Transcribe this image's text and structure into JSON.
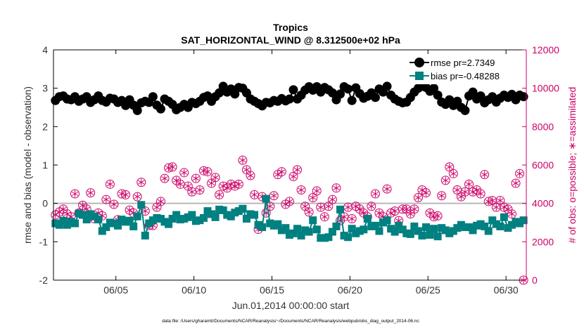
{
  "chart_data": {
    "type": "line",
    "title": "Tropics",
    "subtitle": "SAT_HORIZONTAL_WIND @ 8.312500e+02 hPa",
    "xlabel": "Jun.01,2014 00:00:00 start",
    "ylabel_left": "rmse and bias (model - observation)",
    "ylabel_right": "# of obs: o=possible; ∗=assimilated",
    "footnote": "data file: /Users/gharamti/Documents/NCAR/Reanalysis/~/Documents/NCAR/Reanalysis/webpub/obs_diag_output_2014-06.nc",
    "xlim": [
      1.0,
      31.3
    ],
    "ylim_left": [
      -2,
      4
    ],
    "ylim_right": [
      0,
      12000
    ],
    "x_ticks": [
      5,
      10,
      15,
      20,
      25,
      30
    ],
    "x_tick_labels": [
      "06/05",
      "06/10",
      "06/15",
      "06/20",
      "06/25",
      "06/30"
    ],
    "y_left_ticks": [
      -2,
      -1,
      0,
      1,
      2,
      3,
      4
    ],
    "y_left_tick_labels": [
      "-2",
      "-1",
      "0",
      "1",
      "2",
      "3",
      "4"
    ],
    "y_right_ticks": [
      0,
      2000,
      4000,
      6000,
      8000,
      10000,
      12000
    ],
    "y_right_tick_labels": [
      "0",
      "2000",
      "4000",
      "6000",
      "8000",
      "10000",
      "12000"
    ],
    "legend_position": "top-right",
    "series": [
      {
        "name": "rmse pr=2.7349",
        "axis": "left",
        "color": "#000000",
        "marker": "circle",
        "x": [
          1.125,
          1.375,
          1.625,
          1.875,
          2.125,
          2.375,
          2.625,
          2.875,
          3.125,
          3.375,
          3.625,
          3.875,
          4.125,
          4.375,
          4.625,
          4.875,
          5.125,
          5.375,
          5.625,
          5.875,
          6.125,
          6.375,
          6.625,
          6.875,
          7.125,
          7.375,
          7.625,
          7.875,
          8.125,
          8.375,
          8.625,
          8.875,
          9.125,
          9.375,
          9.625,
          9.875,
          10.125,
          10.375,
          10.625,
          10.875,
          11.125,
          11.375,
          11.625,
          11.875,
          12.125,
          12.375,
          12.625,
          12.875,
          13.125,
          13.375,
          13.625,
          13.875,
          14.125,
          14.375,
          14.625,
          14.875,
          15.125,
          15.375,
          15.625,
          15.875,
          16.125,
          16.375,
          16.625,
          16.875,
          17.125,
          17.375,
          17.625,
          17.875,
          18.125,
          18.375,
          18.625,
          18.875,
          19.125,
          19.375,
          19.625,
          19.875,
          20.125,
          20.375,
          20.625,
          20.875,
          21.125,
          21.375,
          21.625,
          21.875,
          22.125,
          22.375,
          22.625,
          22.875,
          23.125,
          23.375,
          23.625,
          23.875,
          24.125,
          24.375,
          24.625,
          24.875,
          25.125,
          25.375,
          25.625,
          25.875,
          26.125,
          26.375,
          26.625,
          26.875,
          27.125,
          27.375,
          27.625,
          27.875,
          28.125,
          28.375,
          28.625,
          28.875,
          29.125,
          29.375,
          29.625,
          29.875,
          30.125,
          30.375,
          30.625,
          30.875,
          31.125
        ],
        "values": [
          2.68,
          2.78,
          2.8,
          2.72,
          2.7,
          2.78,
          2.66,
          2.72,
          2.78,
          2.63,
          2.7,
          2.8,
          2.68,
          2.64,
          2.74,
          2.72,
          2.63,
          2.68,
          2.55,
          2.7,
          2.56,
          2.42,
          2.62,
          2.66,
          2.63,
          2.78,
          2.56,
          2.46,
          2.72,
          2.66,
          2.58,
          2.44,
          2.5,
          2.58,
          2.5,
          2.63,
          2.6,
          2.66,
          2.76,
          2.8,
          2.66,
          2.78,
          2.88,
          3.05,
          2.9,
          2.98,
          2.85,
          3.02,
          3.0,
          2.88,
          2.72,
          2.66,
          2.6,
          2.54,
          2.63,
          2.62,
          2.68,
          2.66,
          2.73,
          2.67,
          2.72,
          2.96,
          2.72,
          2.82,
          2.95,
          3.04,
          2.95,
          3.04,
          2.9,
          3.02,
          2.96,
          2.88,
          2.7,
          2.85,
          3.04,
          2.98,
          2.68,
          3.01,
          2.86,
          2.74,
          2.79,
          2.88,
          2.76,
          2.98,
          2.9,
          3.05,
          2.82,
          2.72,
          2.66,
          2.62,
          2.64,
          2.76,
          2.9,
          3.0,
          3.05,
          3.02,
          2.92,
          3.0,
          2.82,
          2.64,
          2.58,
          2.7,
          2.55,
          2.66,
          2.5,
          2.42,
          2.8,
          2.9,
          2.72,
          2.8,
          2.62,
          2.7,
          2.78,
          2.64,
          2.74,
          2.82,
          2.76,
          2.84,
          2.7,
          2.82,
          2.78
        ]
      },
      {
        "name": "bias pr=-0.48288",
        "axis": "left",
        "color": "#008080",
        "marker": "square",
        "x": [
          1.125,
          1.375,
          1.625,
          1.875,
          2.125,
          2.375,
          2.625,
          2.875,
          3.125,
          3.375,
          3.625,
          3.875,
          4.125,
          4.375,
          4.625,
          4.875,
          5.125,
          5.375,
          5.625,
          5.875,
          6.125,
          6.375,
          6.625,
          6.875,
          7.125,
          7.375,
          7.625,
          7.875,
          8.125,
          8.375,
          8.625,
          8.875,
          9.125,
          9.375,
          9.625,
          9.875,
          10.125,
          10.375,
          10.625,
          10.875,
          11.125,
          11.375,
          11.625,
          11.875,
          12.125,
          12.375,
          12.625,
          12.875,
          13.125,
          13.375,
          13.625,
          13.875,
          14.125,
          14.375,
          14.625,
          14.875,
          15.125,
          15.375,
          15.625,
          15.875,
          16.125,
          16.375,
          16.625,
          16.875,
          17.125,
          17.375,
          17.625,
          17.875,
          18.125,
          18.375,
          18.625,
          18.875,
          19.125,
          19.375,
          19.625,
          19.875,
          20.125,
          20.375,
          20.625,
          20.875,
          21.125,
          21.375,
          21.625,
          21.875,
          22.125,
          22.375,
          22.625,
          22.875,
          23.125,
          23.375,
          23.625,
          23.875,
          24.125,
          24.375,
          24.625,
          24.875,
          25.125,
          25.375,
          25.625,
          25.875,
          26.125,
          26.375,
          26.625,
          26.875,
          27.125,
          27.375,
          27.625,
          27.875,
          28.125,
          28.375,
          28.625,
          28.875,
          29.125,
          29.375,
          29.625,
          29.875,
          30.125,
          30.375,
          30.625,
          30.875,
          31.125
        ],
        "values": [
          -0.52,
          -0.56,
          -0.45,
          -0.56,
          -0.48,
          -0.52,
          -0.26,
          -0.3,
          -0.42,
          -0.28,
          -0.34,
          -0.42,
          -0.72,
          -0.62,
          -0.5,
          -0.52,
          -0.58,
          -0.42,
          -0.48,
          -0.45,
          -0.6,
          -0.34,
          -0.04,
          -0.84,
          -0.52,
          -0.44,
          -0.38,
          -0.4,
          -0.48,
          -0.54,
          -0.4,
          -0.3,
          -0.42,
          -0.4,
          -0.36,
          -0.3,
          -0.46,
          -0.44,
          -0.38,
          -0.2,
          -0.28,
          -0.36,
          -0.16,
          -0.18,
          -0.3,
          -0.34,
          -0.24,
          -0.2,
          -0.14,
          -0.4,
          -0.28,
          -0.3,
          -0.56,
          -0.62,
          0.12,
          -0.52,
          -0.58,
          -0.54,
          -0.7,
          -0.64,
          -0.82,
          -0.78,
          -0.66,
          -0.84,
          -0.7,
          -0.74,
          -0.44,
          -0.68,
          -0.9,
          -0.9,
          -0.88,
          -0.74,
          -0.6,
          -0.16,
          -0.84,
          -0.88,
          -0.66,
          -0.78,
          -0.72,
          -0.68,
          -0.4,
          -0.6,
          -0.58,
          -0.72,
          -0.5,
          -0.44,
          -0.66,
          -0.74,
          -0.58,
          -0.68,
          -0.78,
          -0.8,
          -0.6,
          -0.72,
          -0.84,
          -0.62,
          -0.82,
          -0.66,
          -0.86,
          -0.64,
          -0.7,
          -0.78,
          -0.72,
          -0.64,
          -0.56,
          -0.62,
          -0.62,
          -0.7,
          -0.58,
          -0.54,
          -0.6,
          -0.72,
          -0.44,
          -0.54,
          -0.6,
          -0.36,
          -0.64,
          -0.56,
          -0.48,
          -0.52,
          -0.44
        ]
      },
      {
        "name": "possible observations",
        "axis": "right",
        "color": "#cc0066",
        "marker": "circle-open",
        "x": [
          1.125,
          1.375,
          1.625,
          1.875,
          2.125,
          2.375,
          2.625,
          2.875,
          3.125,
          3.375,
          3.625,
          3.875,
          4.125,
          4.375,
          4.625,
          4.875,
          5.125,
          5.375,
          5.625,
          5.875,
          6.125,
          6.375,
          6.625,
          6.875,
          7.125,
          7.375,
          7.625,
          7.875,
          8.125,
          8.375,
          8.625,
          8.875,
          9.125,
          9.375,
          9.625,
          9.875,
          10.125,
          10.375,
          10.625,
          10.875,
          11.125,
          11.375,
          11.625,
          11.875,
          12.125,
          12.375,
          12.625,
          12.875,
          13.125,
          13.375,
          13.625,
          13.875,
          14.125,
          14.375,
          14.625,
          14.875,
          15.125,
          15.375,
          15.625,
          15.875,
          16.125,
          16.375,
          16.625,
          16.875,
          17.125,
          17.375,
          17.625,
          17.875,
          18.125,
          18.375,
          18.625,
          18.875,
          19.125,
          19.375,
          19.625,
          19.875,
          20.125,
          20.375,
          20.625,
          20.875,
          21.125,
          21.375,
          21.625,
          21.875,
          22.125,
          22.375,
          22.625,
          22.875,
          23.125,
          23.375,
          23.625,
          23.875,
          24.125,
          24.375,
          24.625,
          24.875,
          25.125,
          25.375,
          25.625,
          25.875,
          26.125,
          26.375,
          26.625,
          26.875,
          27.125,
          27.375,
          27.625,
          27.875,
          28.125,
          28.375,
          28.625,
          28.875,
          29.125,
          29.375,
          29.625,
          29.875,
          30.125,
          30.375,
          30.625,
          30.875,
          31.125
        ],
        "values": [
          3400,
          3550,
          3700,
          3450,
          3300,
          4500,
          3500,
          3900,
          3700,
          4550,
          3200,
          3500,
          3350,
          4200,
          5000,
          3950,
          3150,
          4500,
          4450,
          3650,
          3500,
          4350,
          5100,
          3600,
          2850,
          2850,
          3800,
          4100,
          5300,
          5850,
          5900,
          5200,
          5000,
          5600,
          4900,
          4600,
          5300,
          4700,
          5700,
          5650,
          5050,
          5350,
          4450,
          4900,
          4800,
          5000,
          4900,
          5000,
          6250,
          5750,
          5450,
          4450,
          2650,
          4350,
          3500,
          3850,
          4400,
          5500,
          5650,
          3950,
          4100,
          5400,
          5750,
          4700,
          3850,
          3550,
          4300,
          4650,
          3800,
          3300,
          3850,
          4200,
          4800,
          3100,
          3300,
          3800,
          3200,
          3850,
          3700,
          3500,
          3300,
          3850,
          4500,
          3500,
          3300,
          4750,
          3500,
          3600,
          3100,
          3700,
          3700,
          3450,
          3700,
          4300,
          4700,
          4550,
          3500,
          3300,
          3350,
          4400,
          5200,
          5900,
          5550,
          4700,
          4350,
          4600,
          5000,
          4600,
          4700,
          4500,
          5500,
          4100,
          4150,
          3800,
          4150,
          3800,
          3700,
          3450,
          5050,
          5550,
          0
        ]
      },
      {
        "name": "assimilated observations",
        "axis": "right",
        "color": "#cc0066",
        "marker": "asterisk",
        "x": [
          1.125,
          1.375,
          1.625,
          1.875,
          2.125,
          2.375,
          2.625,
          2.875,
          3.125,
          3.375,
          3.625,
          3.875,
          4.125,
          4.375,
          4.625,
          4.875,
          5.125,
          5.375,
          5.625,
          5.875,
          6.125,
          6.375,
          6.625,
          6.875,
          7.125,
          7.375,
          7.625,
          7.875,
          8.125,
          8.375,
          8.625,
          8.875,
          9.125,
          9.375,
          9.625,
          9.875,
          10.125,
          10.375,
          10.625,
          10.875,
          11.125,
          11.375,
          11.625,
          11.875,
          12.125,
          12.375,
          12.625,
          12.875,
          13.125,
          13.375,
          13.625,
          13.875,
          14.125,
          14.375,
          14.625,
          14.875,
          15.125,
          15.375,
          15.625,
          15.875,
          16.125,
          16.375,
          16.625,
          16.875,
          17.125,
          17.375,
          17.625,
          17.875,
          18.125,
          18.375,
          18.625,
          18.875,
          19.125,
          19.375,
          19.625,
          19.875,
          20.125,
          20.375,
          20.625,
          20.875,
          21.125,
          21.375,
          21.625,
          21.875,
          22.125,
          22.375,
          22.625,
          22.875,
          23.125,
          23.375,
          23.625,
          23.875,
          24.125,
          24.375,
          24.625,
          24.875,
          25.125,
          25.375,
          25.625,
          25.875,
          26.125,
          26.375,
          26.625,
          26.875,
          27.125,
          27.375,
          27.625,
          27.875,
          28.125,
          28.375,
          28.625,
          28.875,
          29.125,
          29.375,
          29.625,
          29.875,
          30.125,
          30.375,
          30.625,
          30.875,
          31.125
        ],
        "values": [
          3400,
          3550,
          3700,
          3450,
          3300,
          4500,
          3500,
          3900,
          3700,
          4550,
          3200,
          3500,
          3350,
          4200,
          5000,
          3950,
          3150,
          4500,
          4450,
          3650,
          3500,
          4350,
          5100,
          3600,
          2850,
          2850,
          3800,
          4100,
          5300,
          5850,
          5900,
          5200,
          5000,
          5600,
          4900,
          4600,
          5300,
          4700,
          5700,
          5650,
          5050,
          5350,
          4450,
          4900,
          4800,
          5000,
          4900,
          5000,
          6250,
          5750,
          5450,
          4450,
          2650,
          4350,
          3500,
          3850,
          4400,
          5500,
          5650,
          3950,
          4100,
          5400,
          5750,
          4700,
          3850,
          3550,
          4300,
          4650,
          3800,
          3300,
          3850,
          4200,
          4800,
          3100,
          3300,
          3800,
          3200,
          3850,
          3700,
          3500,
          3300,
          3850,
          4500,
          3500,
          3300,
          4750,
          3500,
          3600,
          3100,
          3700,
          3700,
          3450,
          3700,
          4300,
          4700,
          4550,
          3500,
          3300,
          3350,
          4400,
          5200,
          5900,
          5550,
          4700,
          4350,
          4600,
          5000,
          4600,
          4700,
          4500,
          5500,
          4100,
          4150,
          3800,
          4150,
          3800,
          3700,
          3450,
          5050,
          5550,
          0
        ]
      }
    ],
    "legend": [
      {
        "label": "rmse pr=2.7349",
        "color": "#000000",
        "marker": "circle"
      },
      {
        "label": "bias pr=-0.48288",
        "color": "#008080",
        "marker": "square"
      }
    ]
  }
}
